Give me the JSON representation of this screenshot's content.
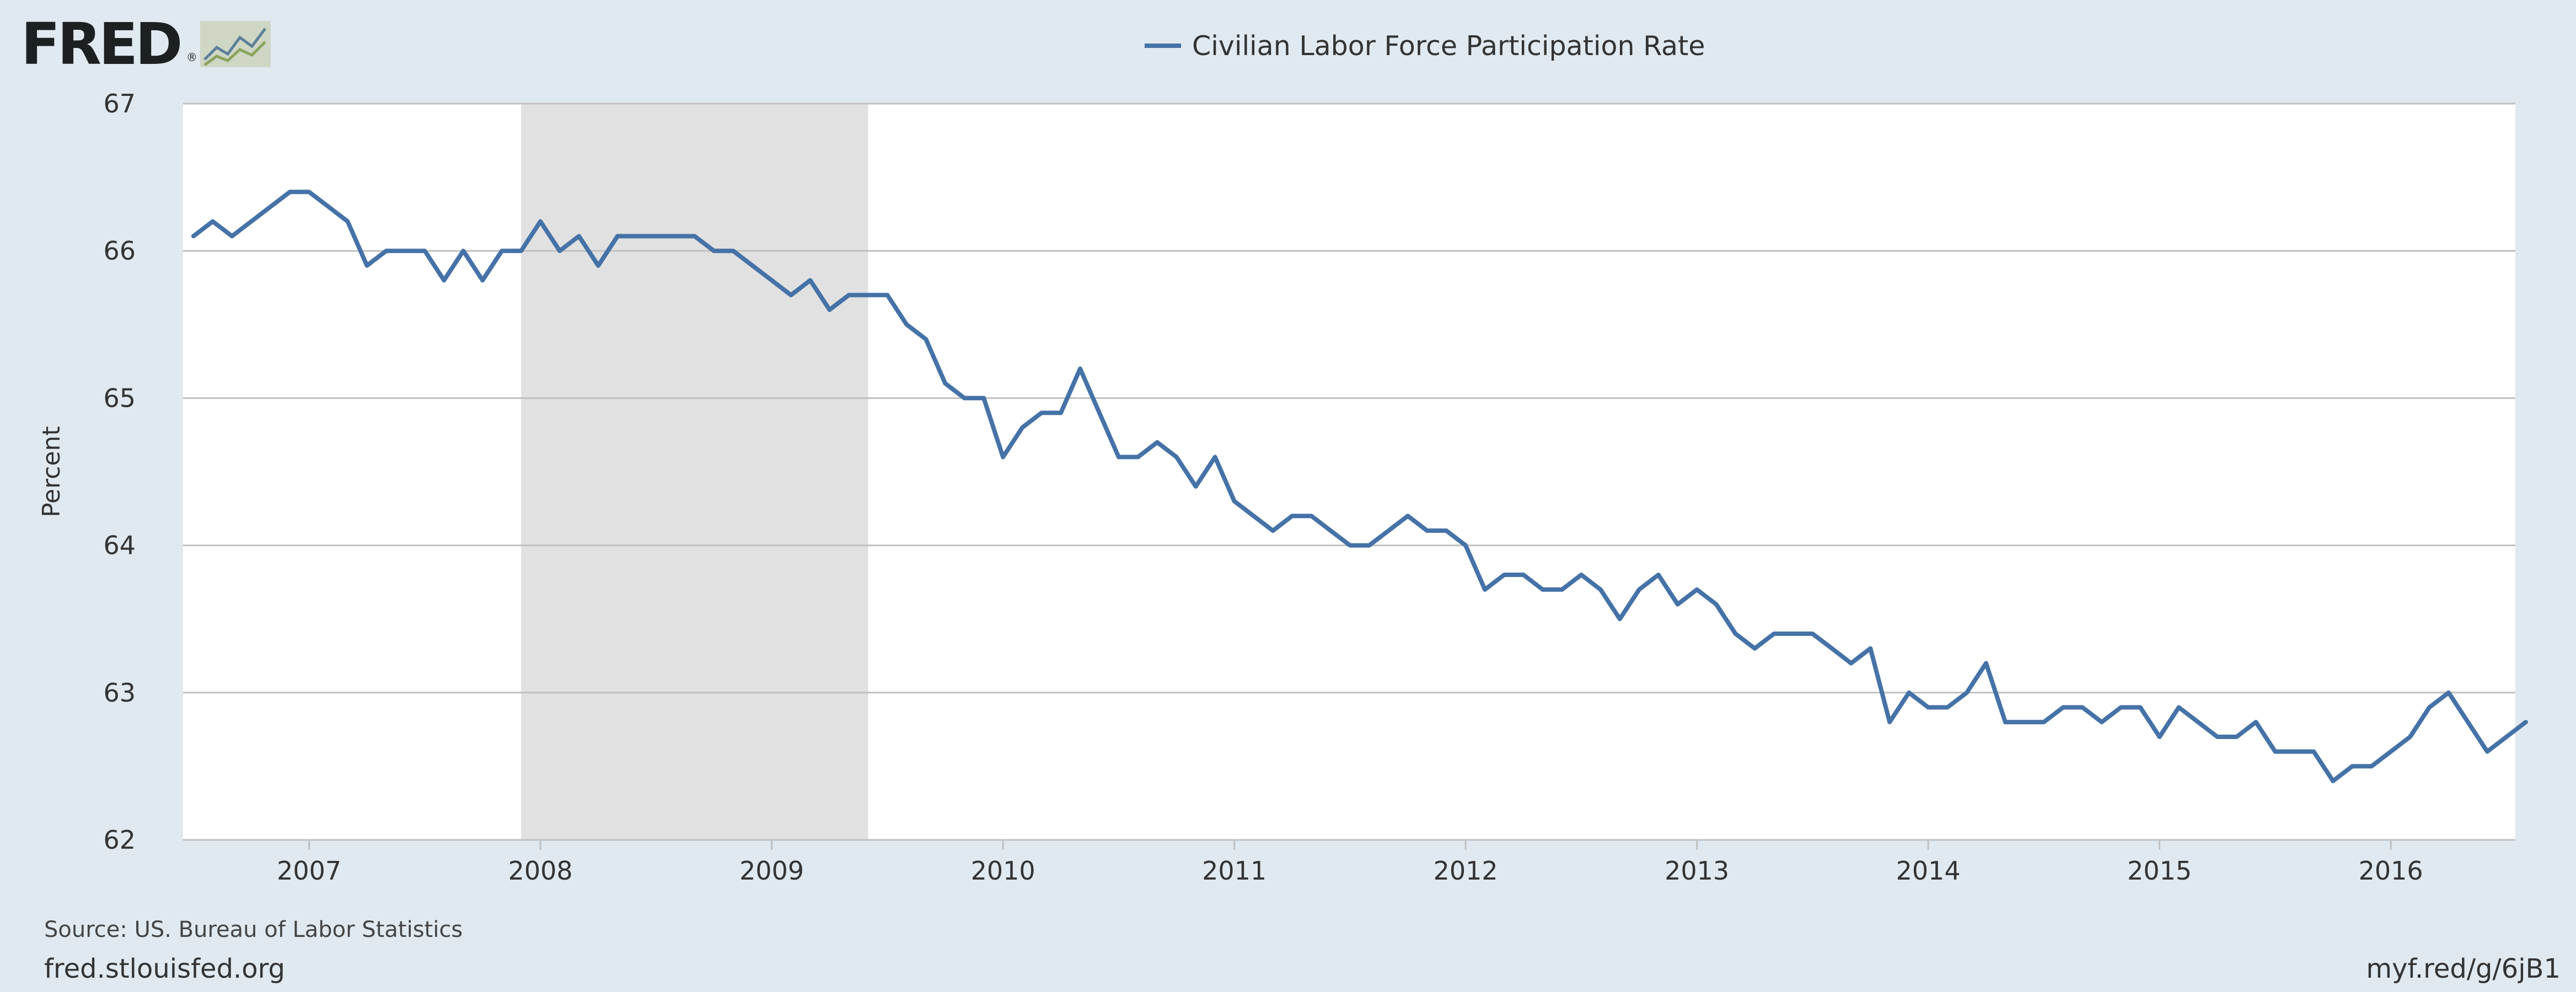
{
  "logo": {
    "text": "FRED",
    "reg": "®",
    "icon": "fred-chart-icon"
  },
  "footer": {
    "source": "Source: US. Bureau of Labor Statistics",
    "site": "fred.stlouisfed.org",
    "shortlink": "myf.red/g/6jB1"
  },
  "colors": {
    "line": "#4572a7",
    "recession": "#e1e1e1",
    "grid": "#c0c0c0",
    "plot_bg": "#ffffff",
    "page_bg": "#e1e9f0"
  },
  "chart_data": {
    "type": "line",
    "title": "",
    "xlabel": "",
    "ylabel": "Percent",
    "ylim": [
      62,
      67
    ],
    "yticks": [
      62,
      63,
      64,
      65,
      66,
      67
    ],
    "xlim": [
      "2006-06-15",
      "2016-07-15"
    ],
    "xticks": [
      "2007",
      "2008",
      "2009",
      "2010",
      "2011",
      "2012",
      "2013",
      "2014",
      "2015",
      "2016"
    ],
    "grid": true,
    "legend_position": "top-center",
    "recession_shading": [
      {
        "start": "2007-12",
        "end": "2009-06"
      }
    ],
    "series": [
      {
        "name": "Civilian Labor Force Participation Rate",
        "start": "2006-07",
        "frequency": "monthly",
        "values": [
          66.1,
          66.2,
          66.1,
          66.2,
          66.3,
          66.4,
          66.4,
          66.3,
          66.2,
          65.9,
          66.0,
          66.0,
          66.0,
          65.8,
          66.0,
          65.8,
          66.0,
          66.0,
          66.2,
          66.0,
          66.1,
          65.9,
          66.1,
          66.1,
          66.1,
          66.1,
          66.1,
          66.0,
          66.0,
          65.9,
          65.8,
          65.7,
          65.8,
          65.6,
          65.7,
          65.7,
          65.7,
          65.5,
          65.4,
          65.1,
          65.0,
          65.0,
          64.6,
          64.8,
          64.9,
          64.9,
          65.2,
          64.9,
          64.6,
          64.6,
          64.7,
          64.6,
          64.4,
          64.6,
          64.3,
          64.2,
          64.1,
          64.2,
          64.2,
          64.1,
          64.0,
          64.0,
          64.1,
          64.2,
          64.1,
          64.1,
          64.0,
          63.7,
          63.8,
          63.8,
          63.7,
          63.7,
          63.8,
          63.7,
          63.5,
          63.7,
          63.8,
          63.6,
          63.7,
          63.6,
          63.4,
          63.3,
          63.4,
          63.4,
          63.4,
          63.3,
          63.2,
          63.3,
          62.8,
          63.0,
          62.9,
          62.9,
          63.0,
          63.2,
          62.8,
          62.8,
          62.8,
          62.9,
          62.9,
          62.8,
          62.9,
          62.9,
          62.7,
          62.9,
          62.8,
          62.7,
          62.7,
          62.8,
          62.6,
          62.6,
          62.6,
          62.4,
          62.5,
          62.5,
          62.6,
          62.7,
          62.9,
          63.0,
          62.8,
          62.6,
          62.7,
          62.8
        ]
      }
    ]
  }
}
